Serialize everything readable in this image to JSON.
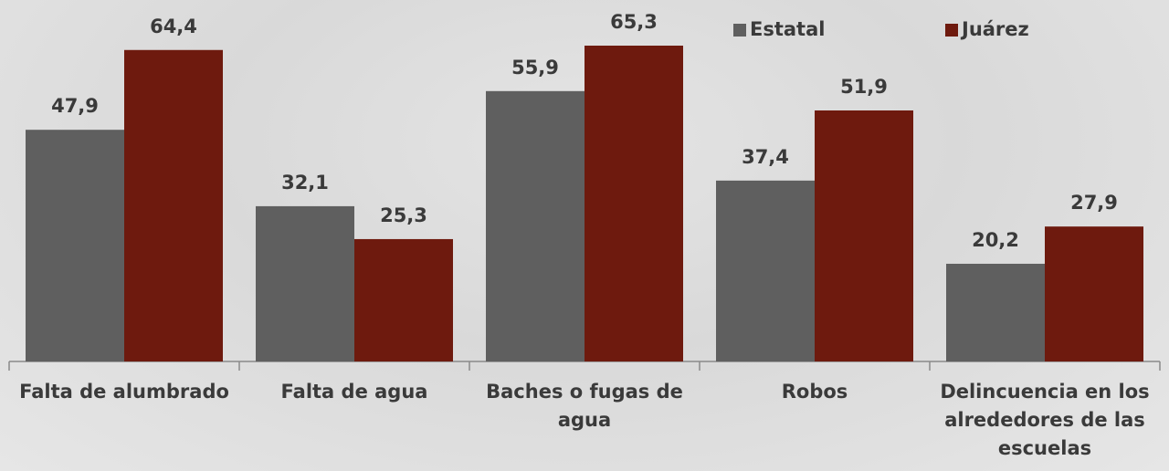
{
  "chart_data": {
    "type": "bar",
    "categories": [
      "Falta de alumbrado",
      "Falta de agua",
      "Baches o fugas de agua",
      "Robos",
      "Delincuencia en los alrededores de las escuelas"
    ],
    "series": [
      {
        "name": "Estatal",
        "color": "#5f5f5f",
        "values": [
          47.9,
          32.1,
          55.9,
          37.4,
          20.2
        ],
        "value_labels": [
          "47,9",
          "32,1",
          "55,9",
          "37,4",
          "20,2"
        ]
      },
      {
        "name": "Juárez",
        "color": "#6e1a0e",
        "values": [
          64.4,
          25.3,
          65.3,
          51.9,
          27.9
        ],
        "value_labels": [
          "64,4",
          "25,3",
          "65,3",
          "51,9",
          "27,9"
        ]
      }
    ]
  }
}
